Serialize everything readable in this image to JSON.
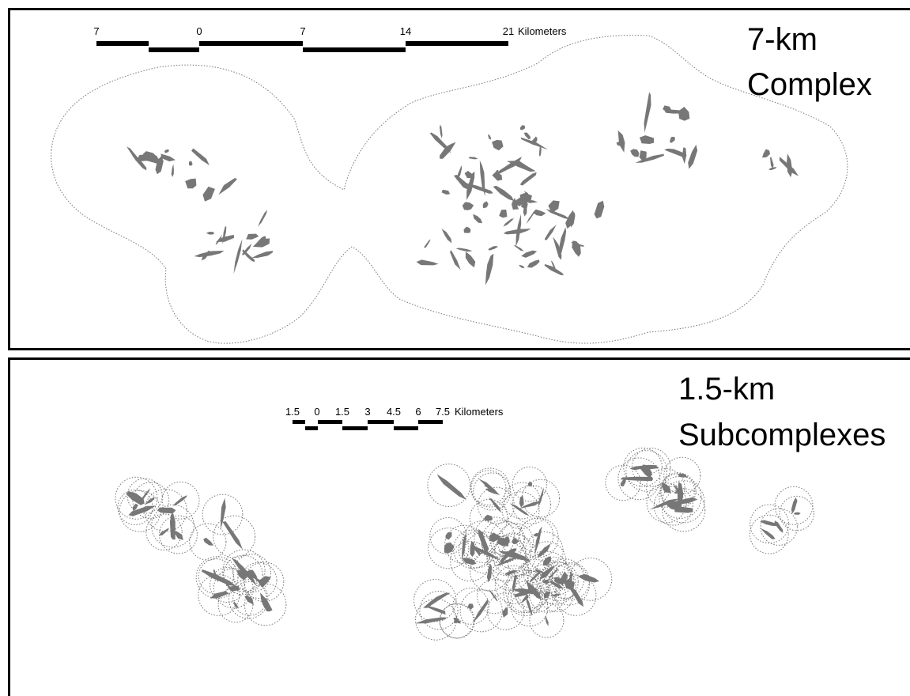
{
  "panels": [
    {
      "title_lines": [
        "7-km",
        "Complex"
      ],
      "scale_bar": {
        "labels": [
          "7",
          "0",
          "7",
          "14",
          "21"
        ],
        "unit": "Kilometers"
      }
    },
    {
      "title_lines": [
        "1.5-km",
        "Subcomplexes"
      ],
      "scale_bar": {
        "labels": [
          "1.5",
          "0",
          "1.5",
          "3",
          "4.5",
          "6",
          "7.5"
        ],
        "unit": "Kilometers"
      }
    }
  ]
}
